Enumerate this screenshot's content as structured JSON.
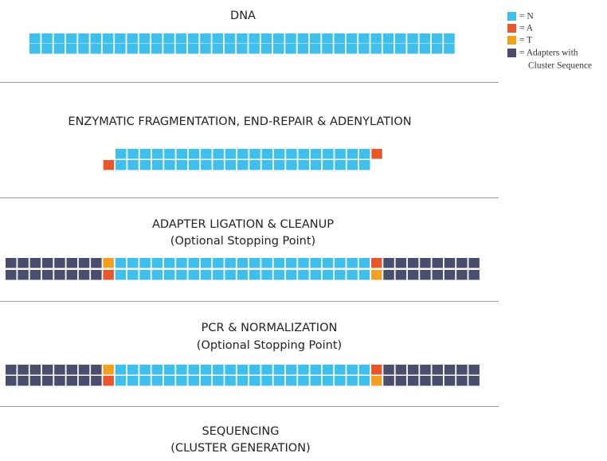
{
  "steps": [
    {
      "lines": [
        "DNA"
      ]
    },
    {
      "lines": [
        "ENZYMATIC FRAGMENTATION, END-REPAIR & ADENYLATION"
      ]
    },
    {
      "lines": [
        "ADAPTER LIGATION & CLEANUP",
        "(Optional Stopping Point)"
      ]
    },
    {
      "lines": [
        "PCR & NORMALIZATION",
        "(Optional Stopping Point)"
      ]
    },
    {
      "lines": [
        "SEQUENCING",
        "(CLUSTER GENERATION)"
      ]
    }
  ],
  "legend": {
    "items": [
      {
        "lines": [
          "= N"
        ]
      },
      {
        "lines": [
          "= A"
        ]
      },
      {
        "lines": [
          "= T"
        ]
      },
      {
        "lines": [
          "= Adapters with",
          "Cluster Sequence"
        ]
      }
    ]
  }
}
